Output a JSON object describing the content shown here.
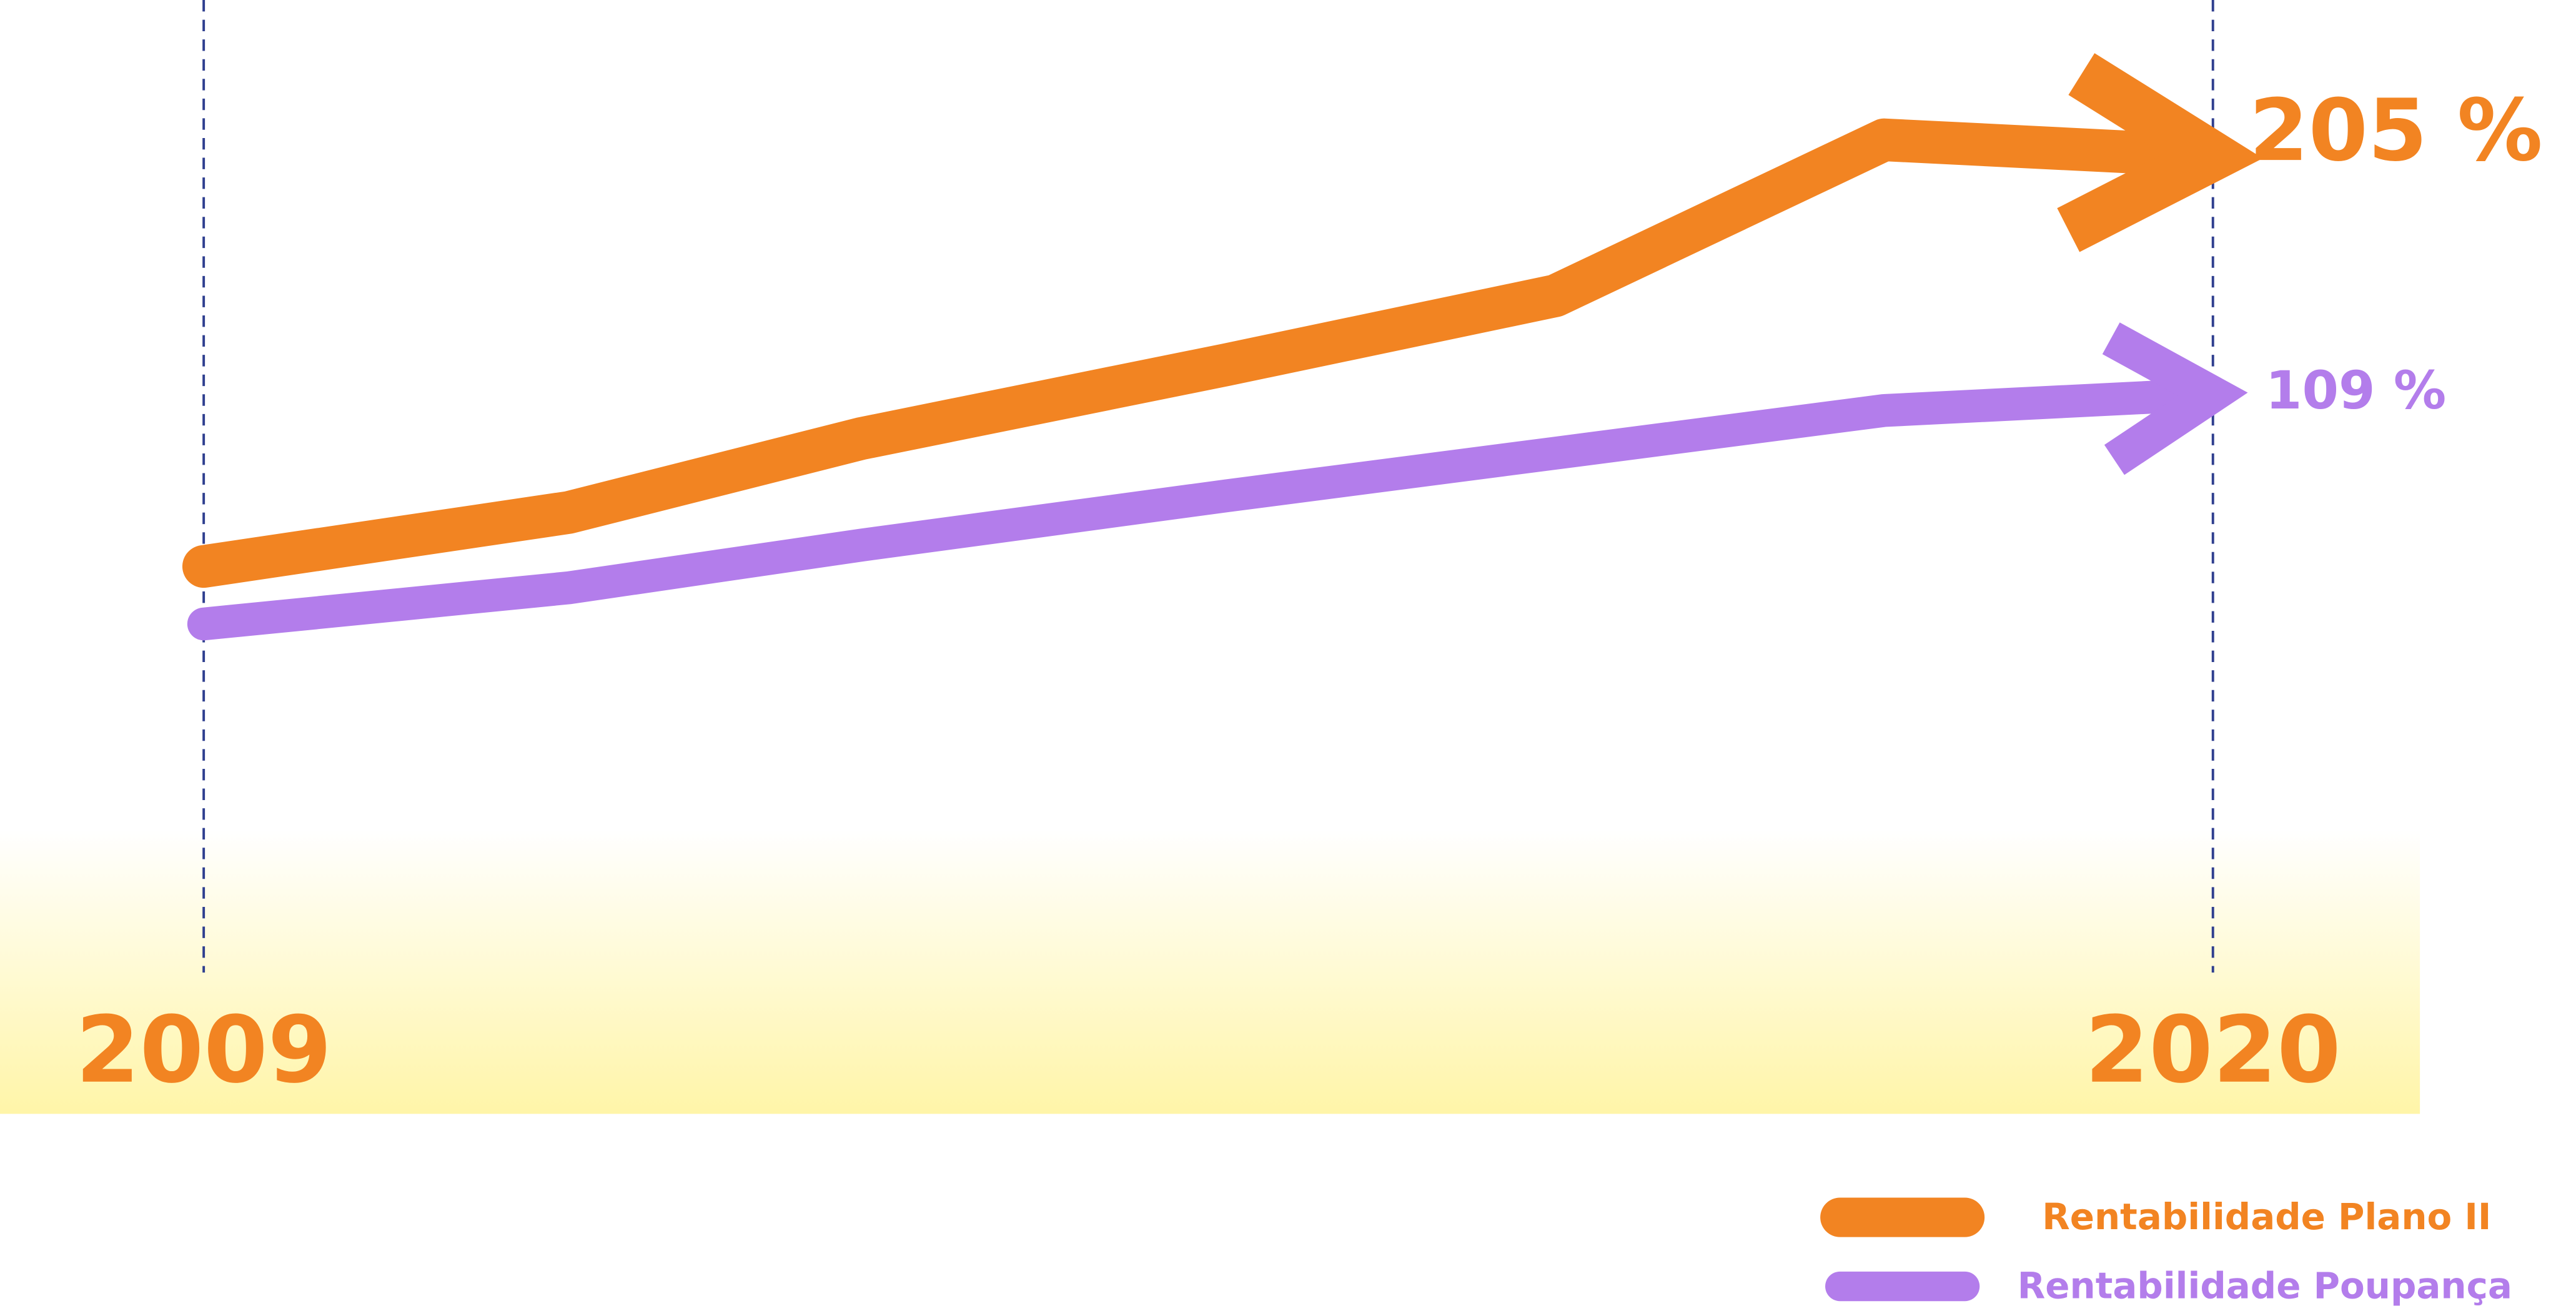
{
  "chart_data": {
    "type": "line",
    "x": [
      2009,
      2011,
      2012.6,
      2014.6,
      2016.4,
      2018.2,
      2020
    ],
    "xlim": [
      2009,
      2020
    ],
    "xticks": [
      2009,
      2020
    ],
    "ylim": [
      -123,
      268
    ],
    "legend": "bottom-right",
    "series": [
      {
        "name": "Rentabilidade Plano II",
        "color": "#f28422",
        "values": [
          39.5,
          61.3,
          91.1,
          120.9,
          148.7,
          211.6,
          205
        ],
        "value_labels": [
          null,
          null,
          null,
          null,
          null,
          null,
          "205 %"
        ]
      },
      {
        "name": "Rentabilidade Poupança",
        "color": "#b37deb",
        "values": [
          16.3,
          30.9,
          48.1,
          68.0,
          85.2,
          102.4,
          109
        ],
        "value_labels": [
          null,
          null,
          null,
          null,
          null,
          null,
          "109 %"
        ]
      }
    ]
  }
}
